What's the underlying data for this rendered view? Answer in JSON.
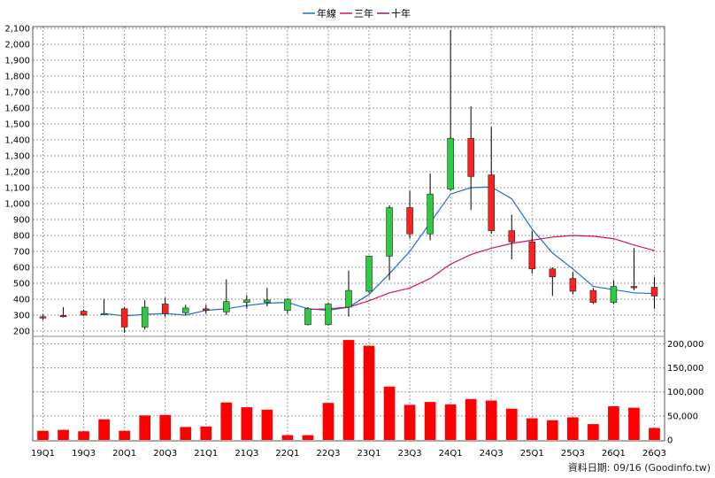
{
  "chart_data": {
    "type": "candlestick",
    "legend": [
      {
        "name": "年線",
        "color": "#1a6fd1"
      },
      {
        "name": "三年",
        "color": "#d2145a"
      },
      {
        "name": "十年",
        "color": "#8b1a6b"
      }
    ],
    "legend_position": "top-center",
    "grid": true,
    "price_axis": {
      "ylim": [
        200,
        2100
      ],
      "ticks": [
        "2,100",
        "2,000",
        "1,900",
        "1,800",
        "1,700",
        "1,600",
        "1,500",
        "1,400",
        "1,300",
        "1,200",
        "1,100",
        "1,000",
        "900",
        "800",
        "700",
        "600",
        "500",
        "400",
        "300",
        "200"
      ],
      "tick_values": [
        2100,
        2000,
        1900,
        1800,
        1700,
        1600,
        1500,
        1400,
        1300,
        1200,
        1100,
        1000,
        900,
        800,
        700,
        600,
        500,
        400,
        300,
        200
      ]
    },
    "volume_axis": {
      "ylim": [
        0,
        210000
      ],
      "ticks": [
        "200,000",
        "150,000",
        "100,000",
        "50,000",
        "0"
      ],
      "tick_values": [
        200000,
        150000,
        100000,
        50000,
        0
      ]
    },
    "x_labels": [
      "19Q1",
      "19Q3",
      "20Q1",
      "20Q3",
      "21Q1",
      "21Q3",
      "22Q1",
      "22Q3",
      "23Q1",
      "23Q3",
      "24Q1",
      "24Q3",
      "25Q1",
      "25Q3",
      "26Q1",
      "26Q3"
    ],
    "quarters": [
      "19Q1",
      "19Q2",
      "19Q3",
      "19Q4",
      "20Q1",
      "20Q2",
      "20Q3",
      "20Q4",
      "21Q1",
      "21Q2",
      "21Q3",
      "21Q4",
      "22Q1",
      "22Q2",
      "22Q3",
      "22Q4",
      "23Q1",
      "23Q2",
      "23Q3",
      "23Q4",
      "24Q1",
      "24Q2",
      "24Q3",
      "24Q4",
      "25Q1",
      "25Q2",
      "25Q3",
      "25Q4",
      "26Q1",
      "26Q2",
      "26Q3"
    ],
    "candles": [
      {
        "q": "19Q1",
        "open": 285,
        "high": 305,
        "low": 270,
        "close": 290
      },
      {
        "q": "19Q2",
        "open": 292,
        "high": 350,
        "low": 285,
        "close": 298
      },
      {
        "q": "19Q3",
        "open": 300,
        "high": 335,
        "low": 295,
        "close": 325
      },
      {
        "q": "19Q4",
        "open": 310,
        "high": 400,
        "low": 300,
        "close": 305
      },
      {
        "q": "20Q1",
        "open": 225,
        "high": 350,
        "low": 190,
        "close": 340
      },
      {
        "q": "20Q2",
        "open": 350,
        "high": 395,
        "low": 210,
        "close": 225
      },
      {
        "q": "20Q3",
        "open": 310,
        "high": 410,
        "low": 290,
        "close": 370
      },
      {
        "q": "20Q4",
        "open": 345,
        "high": 365,
        "low": 300,
        "close": 315
      },
      {
        "q": "21Q1",
        "open": 330,
        "high": 365,
        "low": 310,
        "close": 340
      },
      {
        "q": "21Q2",
        "open": 385,
        "high": 525,
        "low": 300,
        "close": 320
      },
      {
        "q": "21Q3",
        "open": 395,
        "high": 425,
        "low": 340,
        "close": 380
      },
      {
        "q": "21Q4",
        "open": 395,
        "high": 470,
        "low": 355,
        "close": 380
      },
      {
        "q": "22Q1",
        "open": 400,
        "high": 405,
        "low": 310,
        "close": 330
      },
      {
        "q": "22Q2",
        "open": 340,
        "high": 350,
        "low": 235,
        "close": 240
      },
      {
        "q": "22Q3",
        "open": 370,
        "high": 380,
        "low": 235,
        "close": 240
      },
      {
        "q": "22Q4",
        "open": 455,
        "high": 580,
        "low": 290,
        "close": 350
      },
      {
        "q": "23Q1",
        "open": 670,
        "high": 670,
        "low": 440,
        "close": 450
      },
      {
        "q": "23Q2",
        "open": 975,
        "high": 990,
        "low": 520,
        "close": 670
      },
      {
        "q": "23Q3",
        "open": 810,
        "high": 1080,
        "low": 780,
        "close": 975
      },
      {
        "q": "23Q4",
        "open": 1060,
        "high": 1190,
        "low": 770,
        "close": 810
      },
      {
        "q": "24Q1",
        "open": 1410,
        "high": 2090,
        "low": 1080,
        "close": 1090
      },
      {
        "q": "24Q2",
        "open": 1170,
        "high": 1610,
        "low": 960,
        "close": 1410
      },
      {
        "q": "24Q3",
        "open": 830,
        "high": 1480,
        "low": 810,
        "close": 1180
      },
      {
        "q": "24Q4",
        "open": 760,
        "high": 930,
        "low": 650,
        "close": 830
      },
      {
        "q": "25Q1",
        "open": 590,
        "high": 830,
        "low": 560,
        "close": 760
      },
      {
        "q": "25Q2",
        "open": 540,
        "high": 600,
        "low": 420,
        "close": 590
      },
      {
        "q": "25Q3",
        "open": 450,
        "high": 570,
        "low": 430,
        "close": 530
      },
      {
        "q": "25Q4",
        "open": 380,
        "high": 470,
        "low": 370,
        "close": 455
      },
      {
        "q": "26Q1",
        "open": 480,
        "high": 520,
        "low": 370,
        "close": 380
      },
      {
        "q": "26Q2",
        "open": 475,
        "high": 720,
        "low": 455,
        "close": 480
      },
      {
        "q": "26Q3",
        "open": 420,
        "high": 540,
        "low": 340,
        "close": 475
      }
    ],
    "series": [
      {
        "name": "年線",
        "color": "#1a6fd1",
        "values": [
          null,
          null,
          null,
          310,
          295,
          305,
          310,
          300,
          330,
          340,
          360,
          375,
          380,
          340,
          330,
          350,
          430,
          560,
          700,
          880,
          1060,
          1100,
          1105,
          1030,
          840,
          690,
          590,
          480,
          460,
          440,
          435
        ]
      },
      {
        "name": "三年",
        "color": "#d2145a",
        "values": [
          null,
          null,
          null,
          null,
          null,
          null,
          null,
          null,
          null,
          null,
          null,
          null,
          null,
          335,
          340,
          350,
          390,
          440,
          470,
          530,
          620,
          680,
          720,
          750,
          770,
          790,
          800,
          795,
          780,
          740,
          705
        ]
      }
    ],
    "volume": [
      19000,
      21000,
      18000,
      43000,
      19000,
      51000,
      52000,
      27000,
      28000,
      78000,
      68000,
      63000,
      10000,
      10000,
      77000,
      208000,
      196000,
      111000,
      73000,
      79000,
      74000,
      85000,
      82000,
      65000,
      45000,
      41000,
      47000,
      33000,
      70000,
      67000,
      25000
    ],
    "volume_color": "#ff0000"
  },
  "footer": {
    "label": "資料日期: 09/16  (Goodinfo.tw)"
  }
}
